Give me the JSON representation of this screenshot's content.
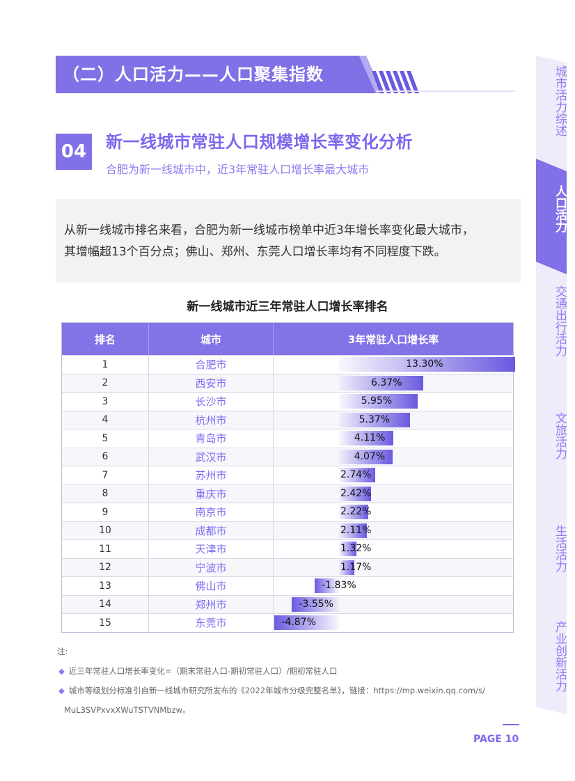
{
  "banner": {
    "title": "（二）人口活力——人口聚集指数"
  },
  "section": {
    "number": "04",
    "heading": "新一线城市常驻人口规模增长率变化分析",
    "subheading": "合肥为新一线城市中，近3年常驻人口增长率最大城市"
  },
  "summary": {
    "line1": "从新一线城市排名来看，合肥为新一线城市榜单中近3年增长率变化最大城市，",
    "line2": "其增幅超13个百分点；佛山、郑州、东莞人口增长率均有不同程度下跌。"
  },
  "chart_data": {
    "type": "table",
    "title": "新一线城市近三年常驻人口增长率排名",
    "columns": [
      "排名",
      "城市",
      "3年常驻人口增长率"
    ],
    "rows": [
      {
        "rank": "1",
        "city": "合肥市",
        "value": 13.3,
        "label": "13.30%"
      },
      {
        "rank": "2",
        "city": "西安市",
        "value": 6.37,
        "label": "6.37%"
      },
      {
        "rank": "3",
        "city": "长沙市",
        "value": 5.95,
        "label": "5.95%"
      },
      {
        "rank": "4",
        "city": "杭州市",
        "value": 5.37,
        "label": "5.37%"
      },
      {
        "rank": "5",
        "city": "青岛市",
        "value": 4.11,
        "label": "4.11%"
      },
      {
        "rank": "6",
        "city": "武汉市",
        "value": 4.07,
        "label": "4.07%"
      },
      {
        "rank": "7",
        "city": "苏州市",
        "value": 2.74,
        "label": "2.74%"
      },
      {
        "rank": "8",
        "city": "重庆市",
        "value": 2.42,
        "label": "2.42%"
      },
      {
        "rank": "9",
        "city": "南京市",
        "value": 2.22,
        "label": "2.22%"
      },
      {
        "rank": "10",
        "city": "成都市",
        "value": 2.11,
        "label": "2.11%"
      },
      {
        "rank": "11",
        "city": "天津市",
        "value": 1.32,
        "label": "1.32%"
      },
      {
        "rank": "12",
        "city": "宁波市",
        "value": 1.17,
        "label": "1.17%"
      },
      {
        "rank": "13",
        "city": "佛山市",
        "value": -1.83,
        "label": "-1.83%"
      },
      {
        "rank": "14",
        "city": "郑州市",
        "value": -3.55,
        "label": "-3.55%"
      },
      {
        "rank": "15",
        "city": "东莞市",
        "value": -4.87,
        "label": "-4.87%"
      }
    ],
    "bar_color": "#6a5ae0"
  },
  "notes": {
    "head": "注:",
    "item1": "近三年常驻人口增长率变化=（期末常驻人口-期初常驻人口）/期初常驻人口",
    "item2": "城市等级划分标准引自新一线城市研究所发布的《2022年城市分级完整名单》，链接：https://mp.weixin.qq.com/s/",
    "item2_cont": "MuL3SVPxvxXWuTSTVNMbzw。"
  },
  "page": {
    "label": "PAGE 10"
  },
  "sidenav": {
    "items": [
      {
        "label": "城市活力综述",
        "active": false
      },
      {
        "label": "人口活力",
        "active": true
      },
      {
        "label": "交通出行活力",
        "active": false
      },
      {
        "label": "文旅活力",
        "active": false
      },
      {
        "label": "生活活力",
        "active": false
      },
      {
        "label": "产业创新活力",
        "active": false
      }
    ]
  },
  "colors": {
    "accent": "#7b68ee",
    "banner": "#8071e6",
    "nav_bg": "#eeecfb"
  }
}
